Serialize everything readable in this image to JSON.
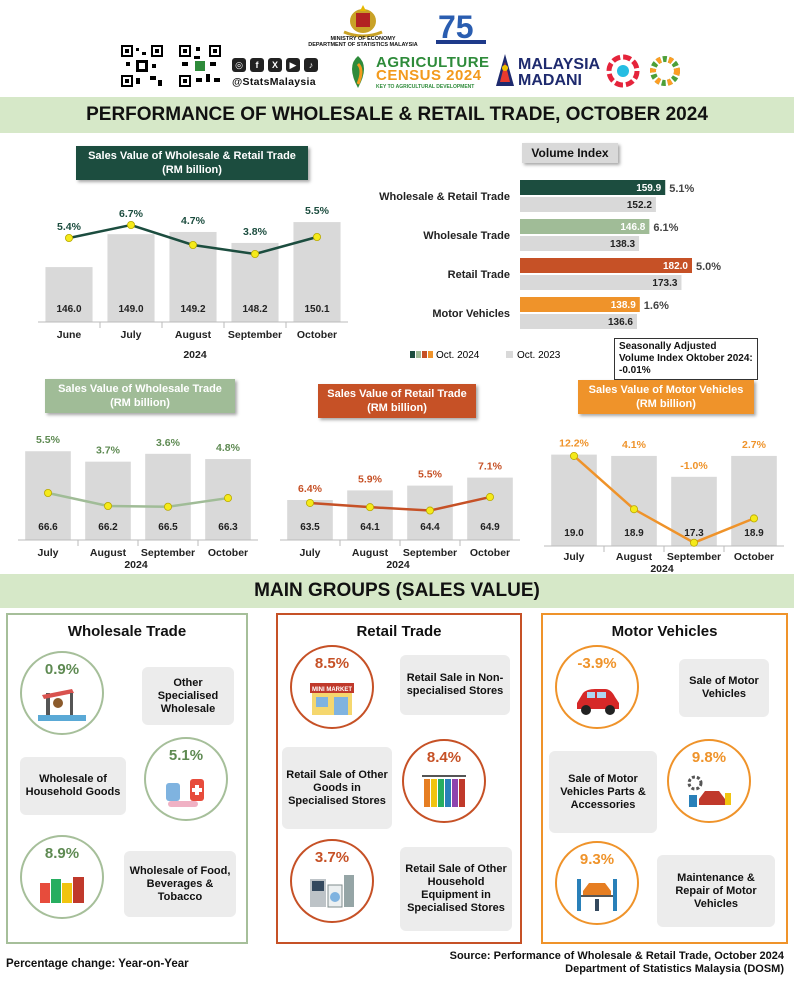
{
  "header": {
    "ministry_line1": "MINISTRY OF ECONOMY",
    "ministry_line2": "DEPARTMENT OF STATISTICS MALAYSIA",
    "social_handle": "@StatsMalaysia",
    "agri_census_line1": "AGRICULTURE",
    "agri_census_line2": "CENSUS 2024",
    "agri_census_tagline": "KEY TO AGRICULTURAL DEVELOPMENT",
    "madani_line1": "MALAYSIA",
    "madani_line2": "MADANI",
    "icons": [
      "coat-of-arms-icon",
      "dosm-75-logo",
      "qr-code-icon",
      "instagram-icon",
      "facebook-icon",
      "x-icon",
      "youtube-icon",
      "tiktok-icon",
      "agriculture-census-logo",
      "malaysia-madani-logo",
      "sdg-logo"
    ]
  },
  "title": "PERFORMANCE OF WHOLESALE & RETAIL TRADE, OCTOBER 2024",
  "section_title": "MAIN GROUPS (SALES VALUE)",
  "colors": {
    "total": "#1c4d3f",
    "wholesale": "#a0bc97",
    "retail": "#c65126",
    "motor": "#ef932a",
    "bars": "#d9d9d9",
    "banner": "#d6e8c8"
  },
  "chart_data": [
    {
      "id": "total",
      "type": "bar",
      "title": "Sales Value of Wholesale & Retail Trade (RM billion)",
      "xlabel": "2024",
      "categories": [
        "June",
        "July",
        "August",
        "September",
        "October"
      ],
      "values": [
        146.0,
        149.0,
        149.2,
        148.2,
        150.1
      ],
      "value_labels": [
        "146.0",
        "149.0",
        "149.2",
        "148.2",
        "150.1"
      ],
      "growth": [
        5.4,
        6.7,
        4.7,
        3.8,
        5.5
      ],
      "growth_labels": [
        "5.4%",
        "6.7%",
        "4.7%",
        "3.8%",
        "5.5%"
      ]
    },
    {
      "id": "volume",
      "type": "bar",
      "title": "Volume Index",
      "categories": [
        "Wholesale & Retail Trade",
        "Wholesale Trade",
        "Retail Trade",
        "Motor Vehicles"
      ],
      "series": [
        {
          "name": "Oct. 2024",
          "values": [
            159.9,
            146.8,
            182.0,
            138.9
          ],
          "labels": [
            "159.9",
            "146.8",
            "182.0",
            "138.9"
          ]
        },
        {
          "name": "Oct. 2023",
          "values": [
            152.2,
            138.3,
            173.3,
            136.6
          ],
          "labels": [
            "152.2",
            "138.3",
            "173.3",
            "136.6"
          ]
        }
      ],
      "growth_labels": [
        "5.1%",
        "6.1%",
        "5.0%",
        "1.6%"
      ],
      "legend": [
        "Oct. 2024",
        "Oct. 2023"
      ],
      "note": "Seasonally Adjusted Volume Index Oktober 2024: -0.01%"
    },
    {
      "id": "wholesale",
      "type": "bar",
      "title": "Sales Value of Wholesale Trade (RM billion)",
      "xlabel": "2024",
      "categories": [
        "July",
        "August",
        "September",
        "October"
      ],
      "values": [
        66.6,
        66.2,
        66.5,
        66.3
      ],
      "value_labels": [
        "66.6",
        "66.2",
        "66.5",
        "66.3"
      ],
      "growth": [
        5.5,
        3.7,
        3.6,
        4.8
      ],
      "growth_labels": [
        "5.5%",
        "3.7%",
        "3.6%",
        "4.8%"
      ]
    },
    {
      "id": "retail",
      "type": "bar",
      "title": "Sales Value of Retail Trade (RM billion)",
      "xlabel": "2024",
      "categories": [
        "July",
        "August",
        "September",
        "October"
      ],
      "values": [
        63.5,
        64.1,
        64.4,
        64.9
      ],
      "value_labels": [
        "63.5",
        "64.1",
        "64.4",
        "64.9"
      ],
      "growth": [
        6.4,
        5.9,
        5.5,
        7.1
      ],
      "growth_labels": [
        "6.4%",
        "5.9%",
        "5.5%",
        "7.1%"
      ]
    },
    {
      "id": "motor",
      "type": "bar",
      "title": "Sales Value of Motor Vehicles (RM billion)",
      "xlabel": "2024",
      "categories": [
        "July",
        "August",
        "September",
        "October"
      ],
      "values": [
        19.0,
        18.9,
        17.3,
        18.9
      ],
      "value_labels": [
        "19.0",
        "18.9",
        "17.3",
        "18.9"
      ],
      "growth": [
        12.2,
        4.1,
        -1.0,
        2.7
      ],
      "growth_labels": [
        "12.2%",
        "4.1%",
        "-1.0%",
        "2.7%"
      ]
    }
  ],
  "groups": {
    "wholesale": {
      "title": "Wholesale Trade",
      "items": [
        {
          "pct": "0.9%",
          "label": "Other Specialised Wholesale",
          "icon": "oil-pump-icon"
        },
        {
          "pct": "5.1%",
          "label": "Wholesale of Household Goods",
          "icon": "medicine-icon"
        },
        {
          "pct": "8.9%",
          "label": "Wholesale of Food, Beverages & Tobacco",
          "icon": "canned-food-icon"
        }
      ]
    },
    "retail": {
      "title": "Retail Trade",
      "items": [
        {
          "pct": "8.5%",
          "label": "Retail Sale in Non-specialised Stores",
          "icon": "mini-market-icon",
          "sign": "MINI MARKET"
        },
        {
          "pct": "8.4%",
          "label": "Retail Sale of Other Goods in Specialised Stores",
          "icon": "clothes-rack-icon"
        },
        {
          "pct": "3.7%",
          "label": "Retail Sale of Other Household Equipment in Specialised Stores",
          "icon": "appliances-icon"
        }
      ]
    },
    "motor": {
      "title": "Motor Vehicles",
      "items": [
        {
          "pct": "-3.9%",
          "label": "Sale of Motor Vehicles",
          "icon": "car-icon"
        },
        {
          "pct": "9.8%",
          "label": "Sale of Motor Vehicles Parts & Accessories",
          "icon": "car-parts-icon"
        },
        {
          "pct": "9.3%",
          "label": "Maintenance & Repair of Motor Vehicles",
          "icon": "car-lift-icon"
        }
      ]
    }
  },
  "footer": {
    "note": "Percentage change: Year-on-Year",
    "source_line1": "Source: Performance of Wholesale & Retail Trade, October 2024",
    "source_line2": "Department of Statistics Malaysia (DOSM)"
  }
}
